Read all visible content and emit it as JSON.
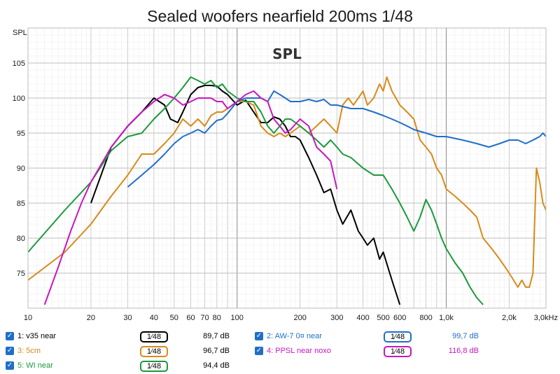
{
  "chart_data": {
    "type": "line",
    "title": "Sealed woofers nearfield 200ms 1/48",
    "plot_label": "SPL",
    "ylabel": "SPL",
    "xscale": "log",
    "xlim": [
      10,
      3000
    ],
    "ylim": [
      70,
      110
    ],
    "yticks": [
      75,
      80,
      85,
      90,
      95,
      100,
      105
    ],
    "xticks": [
      {
        "v": 10,
        "t": "10"
      },
      {
        "v": 20,
        "t": "20"
      },
      {
        "v": 30,
        "t": "30"
      },
      {
        "v": 40,
        "t": "40"
      },
      {
        "v": 50,
        "t": "50"
      },
      {
        "v": 60,
        "t": "60"
      },
      {
        "v": 70,
        "t": "70"
      },
      {
        "v": 80,
        "t": "80"
      },
      {
        "v": 100,
        "t": "100"
      },
      {
        "v": 200,
        "t": "200"
      },
      {
        "v": 300,
        "t": "300"
      },
      {
        "v": 400,
        "t": "400"
      },
      {
        "v": 500,
        "t": "500"
      },
      {
        "v": 600,
        "t": "600"
      },
      {
        "v": 800,
        "t": "800"
      },
      {
        "v": 1000,
        "t": "1,0k"
      },
      {
        "v": 2000,
        "t": "2,0k"
      },
      {
        "v": 3000,
        "t": "3,0kHz"
      }
    ],
    "grid": true,
    "series": [
      {
        "name": "1: v35 near",
        "color": "#000000",
        "level": "89,7 dB",
        "smoothing": "1⁄48",
        "x": [
          20,
          25,
          30,
          35,
          40,
          45,
          48,
          52,
          55,
          60,
          65,
          70,
          75,
          80,
          85,
          90,
          100,
          110,
          120,
          130,
          140,
          150,
          160,
          170,
          180,
          190,
          200,
          220,
          240,
          260,
          280,
          300,
          320,
          350,
          380,
          400,
          420,
          450,
          480,
          500,
          550,
          600
        ],
        "y": [
          85,
          93,
          96,
          98,
          100,
          99,
          97,
          96.5,
          98,
          100.5,
          101.5,
          101.8,
          101.8,
          101.7,
          101,
          100.5,
          99,
          99.7,
          98,
          96.5,
          96.5,
          97.3,
          97,
          96,
          94.5,
          94.5,
          94,
          91.5,
          89,
          86.5,
          87,
          84,
          82,
          84,
          81,
          80,
          79,
          80,
          77,
          78,
          74,
          70.5
        ]
      },
      {
        "name": "3: 5cm",
        "color": "#d98a1a",
        "level": "96,7 dB",
        "smoothing": "1⁄48",
        "x": [
          10,
          15,
          20,
          25,
          30,
          35,
          40,
          45,
          50,
          55,
          60,
          65,
          70,
          75,
          80,
          85,
          90,
          100,
          110,
          120,
          130,
          140,
          150,
          160,
          170,
          180,
          200,
          220,
          240,
          260,
          280,
          300,
          320,
          340,
          360,
          380,
          400,
          420,
          450,
          480,
          500,
          520,
          550,
          600,
          650,
          700,
          750,
          800,
          850,
          900,
          950,
          1000,
          1100,
          1200,
          1300,
          1400,
          1500,
          1600,
          1700,
          1800,
          1900,
          2000,
          2100,
          2200,
          2300,
          2400,
          2500,
          2600,
          2700,
          2800,
          2900,
          3000
        ],
        "y": [
          74,
          78,
          82,
          86,
          89,
          92,
          92,
          93.5,
          95,
          97,
          96,
          97,
          96,
          97.5,
          98,
          98,
          98.5,
          99.5,
          99.5,
          99,
          96,
          95,
          94.5,
          95,
          94.5,
          95,
          96,
          95,
          96,
          97,
          96,
          95,
          99,
          100,
          99,
          100,
          101,
          99,
          100,
          102,
          101,
          103,
          101,
          99,
          98,
          97,
          94,
          93,
          92,
          90,
          89,
          87,
          86,
          85,
          84,
          83,
          80,
          79,
          78,
          77,
          76,
          75,
          74,
          73,
          74,
          73,
          73,
          75,
          90,
          88,
          85,
          84
        ]
      },
      {
        "name": "5: WI near",
        "color": "#1a9a3c",
        "level": "94,4 dB",
        "smoothing": "1⁄48",
        "x": [
          10,
          15,
          20,
          25,
          30,
          35,
          40,
          45,
          50,
          55,
          60,
          65,
          70,
          75,
          80,
          85,
          90,
          100,
          110,
          120,
          130,
          140,
          150,
          160,
          170,
          180,
          200,
          220,
          240,
          260,
          280,
          300,
          320,
          350,
          400,
          450,
          500,
          550,
          600,
          650,
          700,
          750,
          800,
          850,
          900,
          950,
          1000,
          1100,
          1200,
          1300,
          1400,
          1500
        ],
        "y": [
          78,
          84,
          88,
          92.5,
          94.5,
          95,
          97,
          98.5,
          100,
          101.5,
          103,
          102.5,
          102,
          102.5,
          101.5,
          102,
          101,
          100,
          99.5,
          99.5,
          98,
          96,
          95,
          96,
          97,
          97,
          96,
          95,
          94,
          93,
          94,
          93,
          92,
          91.5,
          90,
          89,
          89,
          87,
          85,
          83,
          81,
          83,
          85.5,
          84,
          82,
          80,
          78.5,
          76.5,
          75,
          73,
          71.5,
          70.5
        ]
      },
      {
        "name": "2: AW-7 0¤ near",
        "color": "#1f6fc8",
        "level": "99,7 dB",
        "smoothing": "1⁄48",
        "x": [
          30,
          35,
          40,
          45,
          50,
          55,
          60,
          65,
          70,
          75,
          80,
          85,
          90,
          100,
          110,
          120,
          130,
          140,
          150,
          160,
          170,
          180,
          200,
          220,
          240,
          260,
          280,
          300,
          350,
          400,
          450,
          500,
          550,
          600,
          650,
          700,
          800,
          900,
          1000,
          1200,
          1400,
          1600,
          1800,
          2000,
          2200,
          2400,
          2600,
          2800,
          2900,
          3000
        ],
        "y": [
          87.3,
          89,
          90.5,
          92,
          93.5,
          94.5,
          95,
          95.5,
          95,
          96,
          96.8,
          97,
          97.8,
          99.5,
          100,
          100,
          100,
          99.5,
          101,
          100.5,
          100,
          99.5,
          99.5,
          99.8,
          99.5,
          99.8,
          99,
          99,
          98.5,
          98.5,
          98,
          97.5,
          97,
          96.5,
          96,
          95.5,
          95,
          94.5,
          94.5,
          94,
          93.5,
          93,
          93.5,
          94,
          94,
          93.5,
          94,
          94.5,
          95,
          94.5
        ]
      },
      {
        "name": "4: PPSL near noxo",
        "color": "#c817c0",
        "level": "116,8 dB",
        "smoothing": "1⁄48",
        "x": [
          12,
          14,
          16,
          18,
          20,
          25,
          30,
          35,
          40,
          45,
          50,
          55,
          60,
          65,
          70,
          75,
          80,
          85,
          90,
          100,
          110,
          120,
          130,
          140,
          150,
          160,
          170,
          180,
          200,
          220,
          240,
          260,
          280,
          300
        ],
        "y": [
          70.5,
          76,
          81,
          85,
          88,
          93,
          96,
          98,
          99.5,
          100.5,
          100,
          99,
          99.5,
          100,
          100,
          100,
          99.5,
          99.5,
          98.5,
          99.5,
          100.5,
          101,
          100,
          99.5,
          97,
          96,
          95,
          95.5,
          97,
          96,
          93,
          92,
          91,
          87
        ]
      }
    ]
  }
}
